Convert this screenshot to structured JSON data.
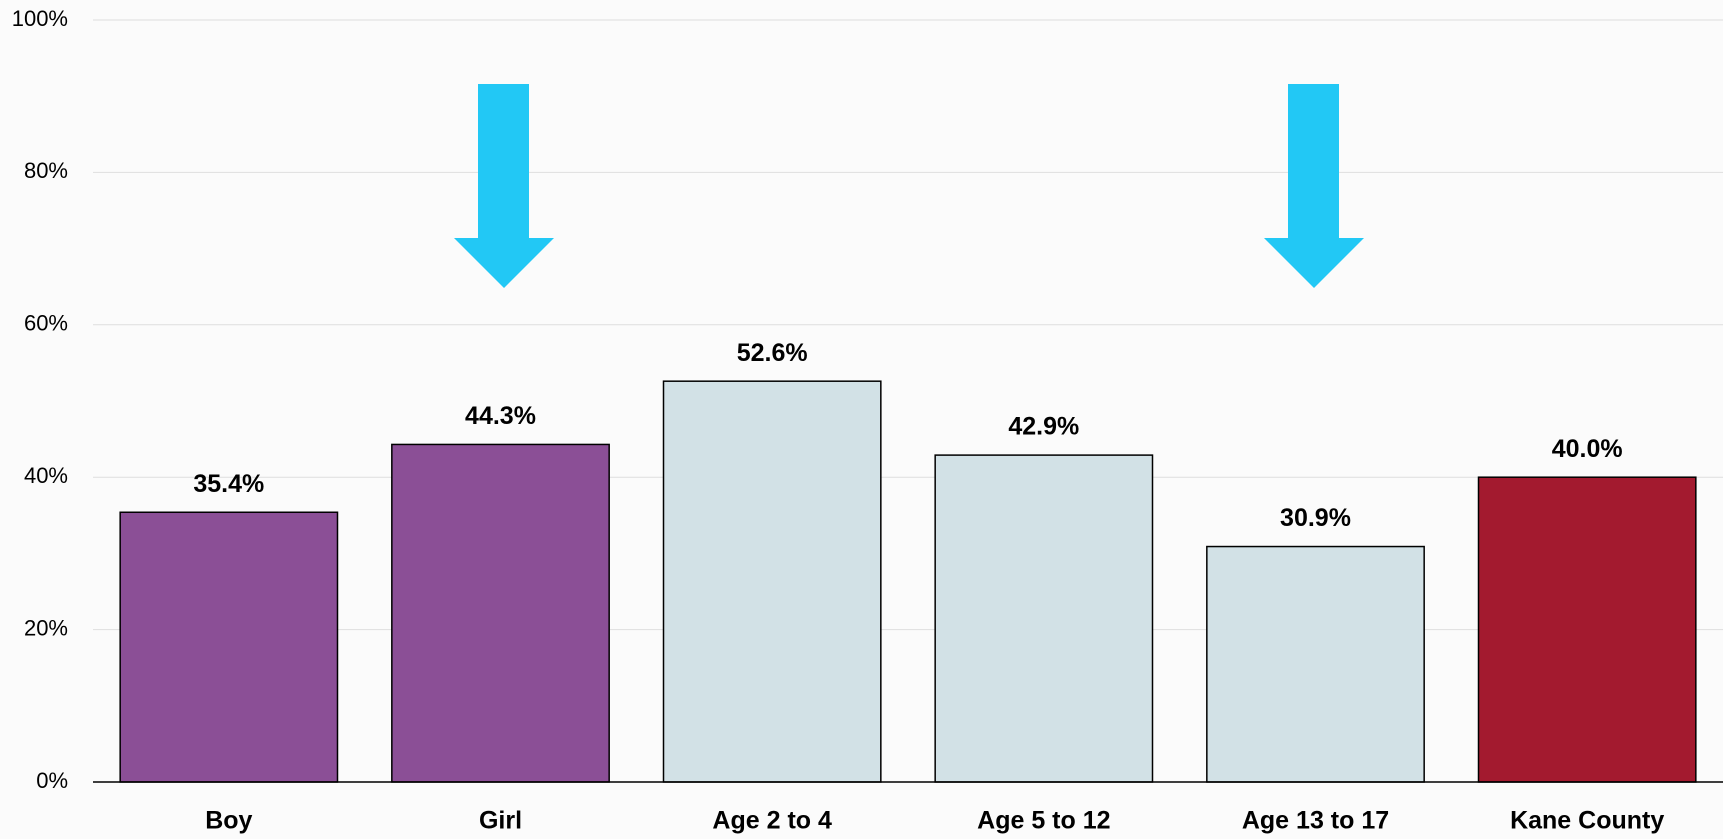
{
  "chart_data": {
    "type": "bar",
    "categories": [
      "Boy",
      "Girl",
      "Age 2 to 4",
      "Age 5 to 12",
      "Age 13 to 17",
      "Kane County"
    ],
    "values": [
      35.4,
      44.3,
      52.6,
      42.9,
      30.9,
      40.0
    ],
    "value_labels": [
      "35.4%",
      "44.3%",
      "52.6%",
      "42.9%",
      "30.9%",
      "40.0%"
    ],
    "colors": [
      "#8b4f96",
      "#8b4f96",
      "#d2e1e6",
      "#d2e1e6",
      "#d2e1e6",
      "#a31a2f"
    ],
    "ylim": [
      0,
      100
    ],
    "yticks": [
      {
        "value": 0,
        "label": "0%"
      },
      {
        "value": 20,
        "label": "20%"
      },
      {
        "value": 40,
        "label": "40%"
      },
      {
        "value": 60,
        "label": "60%"
      },
      {
        "value": 80,
        "label": "80%"
      },
      {
        "value": 100,
        "label": "100%"
      }
    ],
    "grid": true
  }
}
